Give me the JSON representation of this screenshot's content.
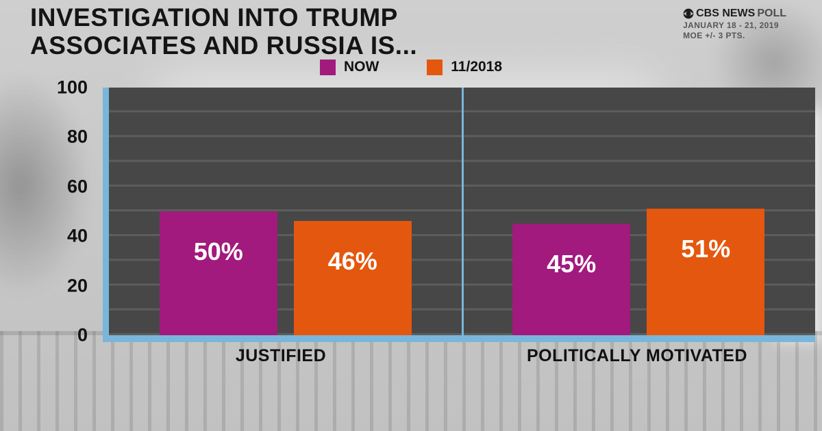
{
  "header": {
    "title_line1": "INVESTIGATION INTO TRUMP",
    "title_line2": "ASSOCIATES AND RUSSIA IS...",
    "source_name": "CBS NEWS",
    "source_poll": " POLL",
    "date_line": "JANUARY 18 - 21, 2019",
    "moe_line": "MOE +/- 3 PTS."
  },
  "chart_data": {
    "type": "bar",
    "categories": [
      "JUSTIFIED",
      "POLITICALLY MOTIVATED"
    ],
    "series": [
      {
        "name": "NOW",
        "color": "#a21a7d",
        "values": [
          50,
          45
        ]
      },
      {
        "name": "11/2018",
        "color": "#e4570e",
        "values": [
          46,
          51
        ]
      }
    ],
    "ylim": [
      0,
      100
    ],
    "yticks": [
      0,
      20,
      40,
      60,
      80,
      100
    ],
    "grid_interval": 10,
    "value_suffix": "%",
    "legend_position": "top-center",
    "grid": true
  },
  "colors": {
    "now_purple": "#a21a7d",
    "prev_orange": "#e4570e",
    "axis_blue": "#79b6da",
    "plot_background": "#474747",
    "gridline": "#5d5d5d",
    "page_background": "#c7c7c7",
    "title_text": "#141414",
    "bar_label_text": "#ffffff"
  }
}
